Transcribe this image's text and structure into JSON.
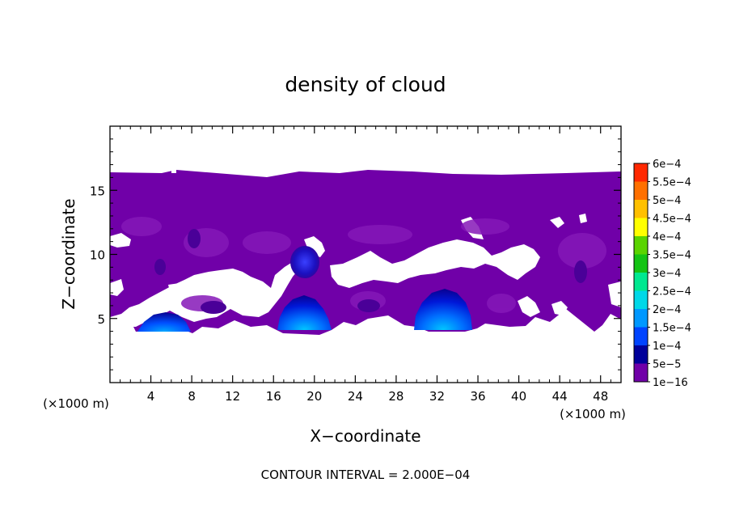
{
  "chart_data": {
    "type": "heatmap",
    "title": "density of cloud",
    "xlabel": "X−coordinate",
    "ylabel": "Z−coordinate",
    "x_unit_left": "(×1000 m)",
    "x_unit_right": "(×1000 m)",
    "footer": "CONTOUR INTERVAL = 2.000E−04",
    "xlim": [
      0,
      50
    ],
    "ylim": [
      0,
      20
    ],
    "x_ticks": [
      4,
      8,
      12,
      16,
      20,
      24,
      28,
      32,
      36,
      40,
      44,
      48
    ],
    "y_ticks": [
      5,
      10,
      15
    ],
    "colorbar": {
      "levels": [
        "1e−16",
        "5e−5",
        "1e−4",
        "1.5e−4",
        "2e−4",
        "2.5e−4",
        "3e−4",
        "3.5e−4",
        "4e−4",
        "4.5e−4",
        "5e−4",
        "5.5e−4",
        "6e−4"
      ],
      "colors": [
        "#7000a8",
        "#00009a",
        "#0044ff",
        "#0098ff",
        "#00d8e8",
        "#00e890",
        "#14c414",
        "#5ad400",
        "#ffff00",
        "#ffc000",
        "#ff7000",
        "#ff2800",
        "#ff6060"
      ]
    },
    "field": {
      "description_level": "1e−16",
      "layer_bottom_km": 4.3,
      "layer_top_km": 15.8,
      "cells": [
        {
          "x_center": 5.2,
          "z_top": 5.4,
          "half_width": 2.1,
          "peak": "1e−4"
        },
        {
          "x_center": 18.8,
          "z_top": 6.8,
          "half_width": 2.7,
          "peak": "1.5e−4"
        },
        {
          "x_center": 32.0,
          "z_top": 6.6,
          "half_width": 3.0,
          "peak": "1.5e−4"
        },
        {
          "x_center": 19.0,
          "z_top": 10.4,
          "half_width": 1.3,
          "peak": "1e−4"
        }
      ]
    }
  }
}
